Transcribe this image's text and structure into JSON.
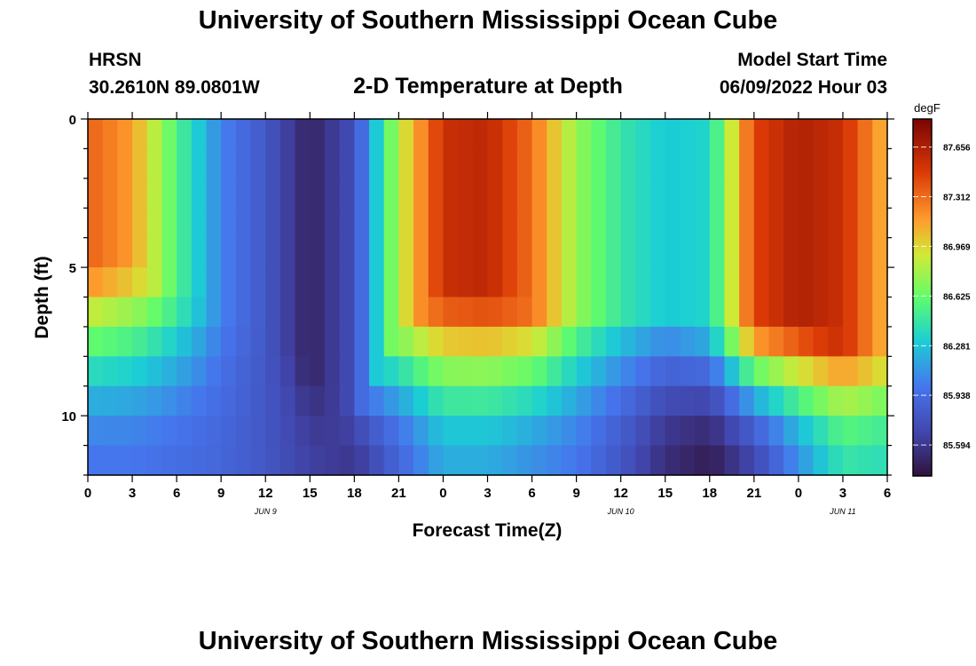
{
  "header": {
    "title": "University of Southern Mississippi Ocean Cube",
    "station": "HRSN",
    "coords": "30.2610N  89.0801W",
    "subtitle": "2-D Temperature at Depth",
    "model_label": "Model Start Time",
    "model_time": "06/09/2022 Hour 03"
  },
  "footer": {
    "title": "University of Southern Mississippi Ocean Cube"
  },
  "chart_data": {
    "type": "heatmap",
    "title": "2-D Temperature at Depth",
    "xlabel": "Forecast Time(Z)",
    "ylabel": "Depth (ft)",
    "x_ticks": [
      "0",
      "3",
      "6",
      "9",
      "12",
      "15",
      "18",
      "21",
      "0",
      "3",
      "6",
      "9",
      "12",
      "15",
      "18",
      "21",
      "0",
      "3",
      "6"
    ],
    "x_tick_hours": [
      0,
      3,
      6,
      9,
      12,
      15,
      18,
      21,
      24,
      27,
      30,
      33,
      36,
      39,
      42,
      45,
      48,
      51,
      54
    ],
    "xlim_hours": [
      0,
      54
    ],
    "day_labels": [
      {
        "label": "JUN 9",
        "hour": 12
      },
      {
        "label": "JUN 10",
        "hour": 36
      },
      {
        "label": "JUN 11",
        "hour": 51
      }
    ],
    "y_ticks": [
      "0",
      "5",
      "10"
    ],
    "y_tick_values": [
      0,
      5,
      10
    ],
    "ylim": [
      0,
      12
    ],
    "colorbar": {
      "unit": "degF",
      "labels": [
        "87.656",
        "87.312",
        "86.969",
        "86.625",
        "86.281",
        "85.938",
        "85.594"
      ],
      "min": 85.38,
      "max": 87.85
    },
    "depth_levels_ft": [
      0.5,
      1.5,
      2.5,
      3.5,
      4.5,
      5.5,
      6.5,
      7.5,
      8.5,
      9.5,
      10.5,
      11.5
    ],
    "profiles": {
      "hours": [
        0,
        3,
        6,
        9,
        12,
        15,
        18,
        21,
        24,
        27,
        30,
        33,
        36,
        39,
        42,
        45,
        48,
        51,
        54
      ],
      "surface_temp": [
        87.35,
        87.15,
        86.55,
        86.05,
        85.8,
        85.48,
        85.75,
        86.85,
        87.55,
        87.6,
        87.3,
        86.75,
        86.45,
        86.3,
        86.35,
        87.45,
        87.65,
        87.55,
        87.05
      ],
      "mixed_layer_ft": [
        6.5,
        6.5,
        7.5,
        8.0,
        8.5,
        10.0,
        11.5,
        8.5,
        7.5,
        7.5,
        8.0,
        8.0,
        8.0,
        8.0,
        8.5,
        8.5,
        8.5,
        9.0,
        9.5
      ],
      "bottom_temp": [
        86.0,
        86.0,
        85.95,
        85.9,
        85.8,
        85.65,
        85.6,
        85.9,
        86.2,
        86.2,
        86.1,
        86.0,
        85.8,
        85.55,
        85.45,
        85.7,
        86.1,
        86.45,
        86.4
      ]
    }
  }
}
